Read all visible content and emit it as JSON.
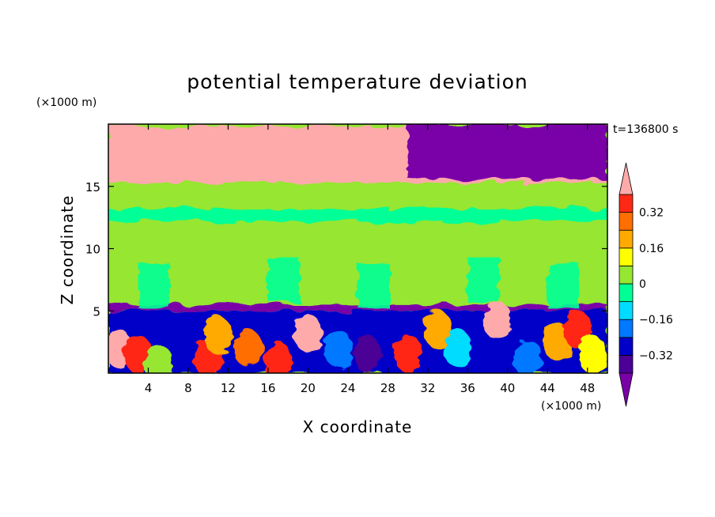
{
  "chart_data": {
    "type": "heatmap",
    "title": "potential temperature deviation",
    "xlabel": "X coordinate",
    "ylabel": "Z coordinate",
    "x_unit": "(×1000 m)",
    "y_unit": "(×1000 m)",
    "time_label": "t=136800 s",
    "xlim": [
      0,
      50
    ],
    "ylim": [
      0,
      20
    ],
    "x_ticks": [
      4,
      8,
      12,
      16,
      20,
      24,
      28,
      32,
      36,
      40,
      44,
      48
    ],
    "y_ticks": [
      5,
      10,
      15
    ],
    "grid": false,
    "legend": "right",
    "colorbar": {
      "levels": [
        -0.4,
        -0.32,
        -0.24,
        -0.16,
        -0.08,
        0,
        0.08,
        0.16,
        0.24,
        0.32,
        0.4
      ],
      "tick_labels": [
        "0.32",
        "0.16",
        "0",
        "−0.16",
        "−0.32"
      ],
      "tick_values": [
        0.32,
        0.16,
        0,
        -0.16,
        -0.32
      ],
      "colors": [
        "#7a00a8",
        "#4b0096",
        "#0000c8",
        "#0078ff",
        "#00dcff",
        "#00ff96",
        "#96e632",
        "#ffff00",
        "#ffaa00",
        "#ff6e00",
        "#ff2814",
        "#ffaaaa"
      ]
    },
    "regions": [
      {
        "x": [
          0,
          50
        ],
        "z": [
          15.3,
          19.8
        ],
        "level": 0.45
      },
      {
        "x": [
          30,
          50
        ],
        "z": [
          15.6,
          20
        ],
        "level": -0.45
      },
      {
        "x": [
          0,
          50
        ],
        "z": [
          13.2,
          15.0
        ],
        "level": 0.04
      },
      {
        "x": [
          0,
          50
        ],
        "z": [
          12.2,
          13.2
        ],
        "level": -0.04
      },
      {
        "x": [
          0,
          50
        ],
        "z": [
          5.5,
          12.2
        ],
        "level": 0.04
      },
      {
        "x": [
          0,
          50
        ],
        "z": [
          5.0,
          5.5
        ],
        "level": -0.45
      },
      {
        "x": [
          0,
          50
        ],
        "z": [
          0,
          5.0
        ],
        "level": -0.3
      }
    ]
  }
}
